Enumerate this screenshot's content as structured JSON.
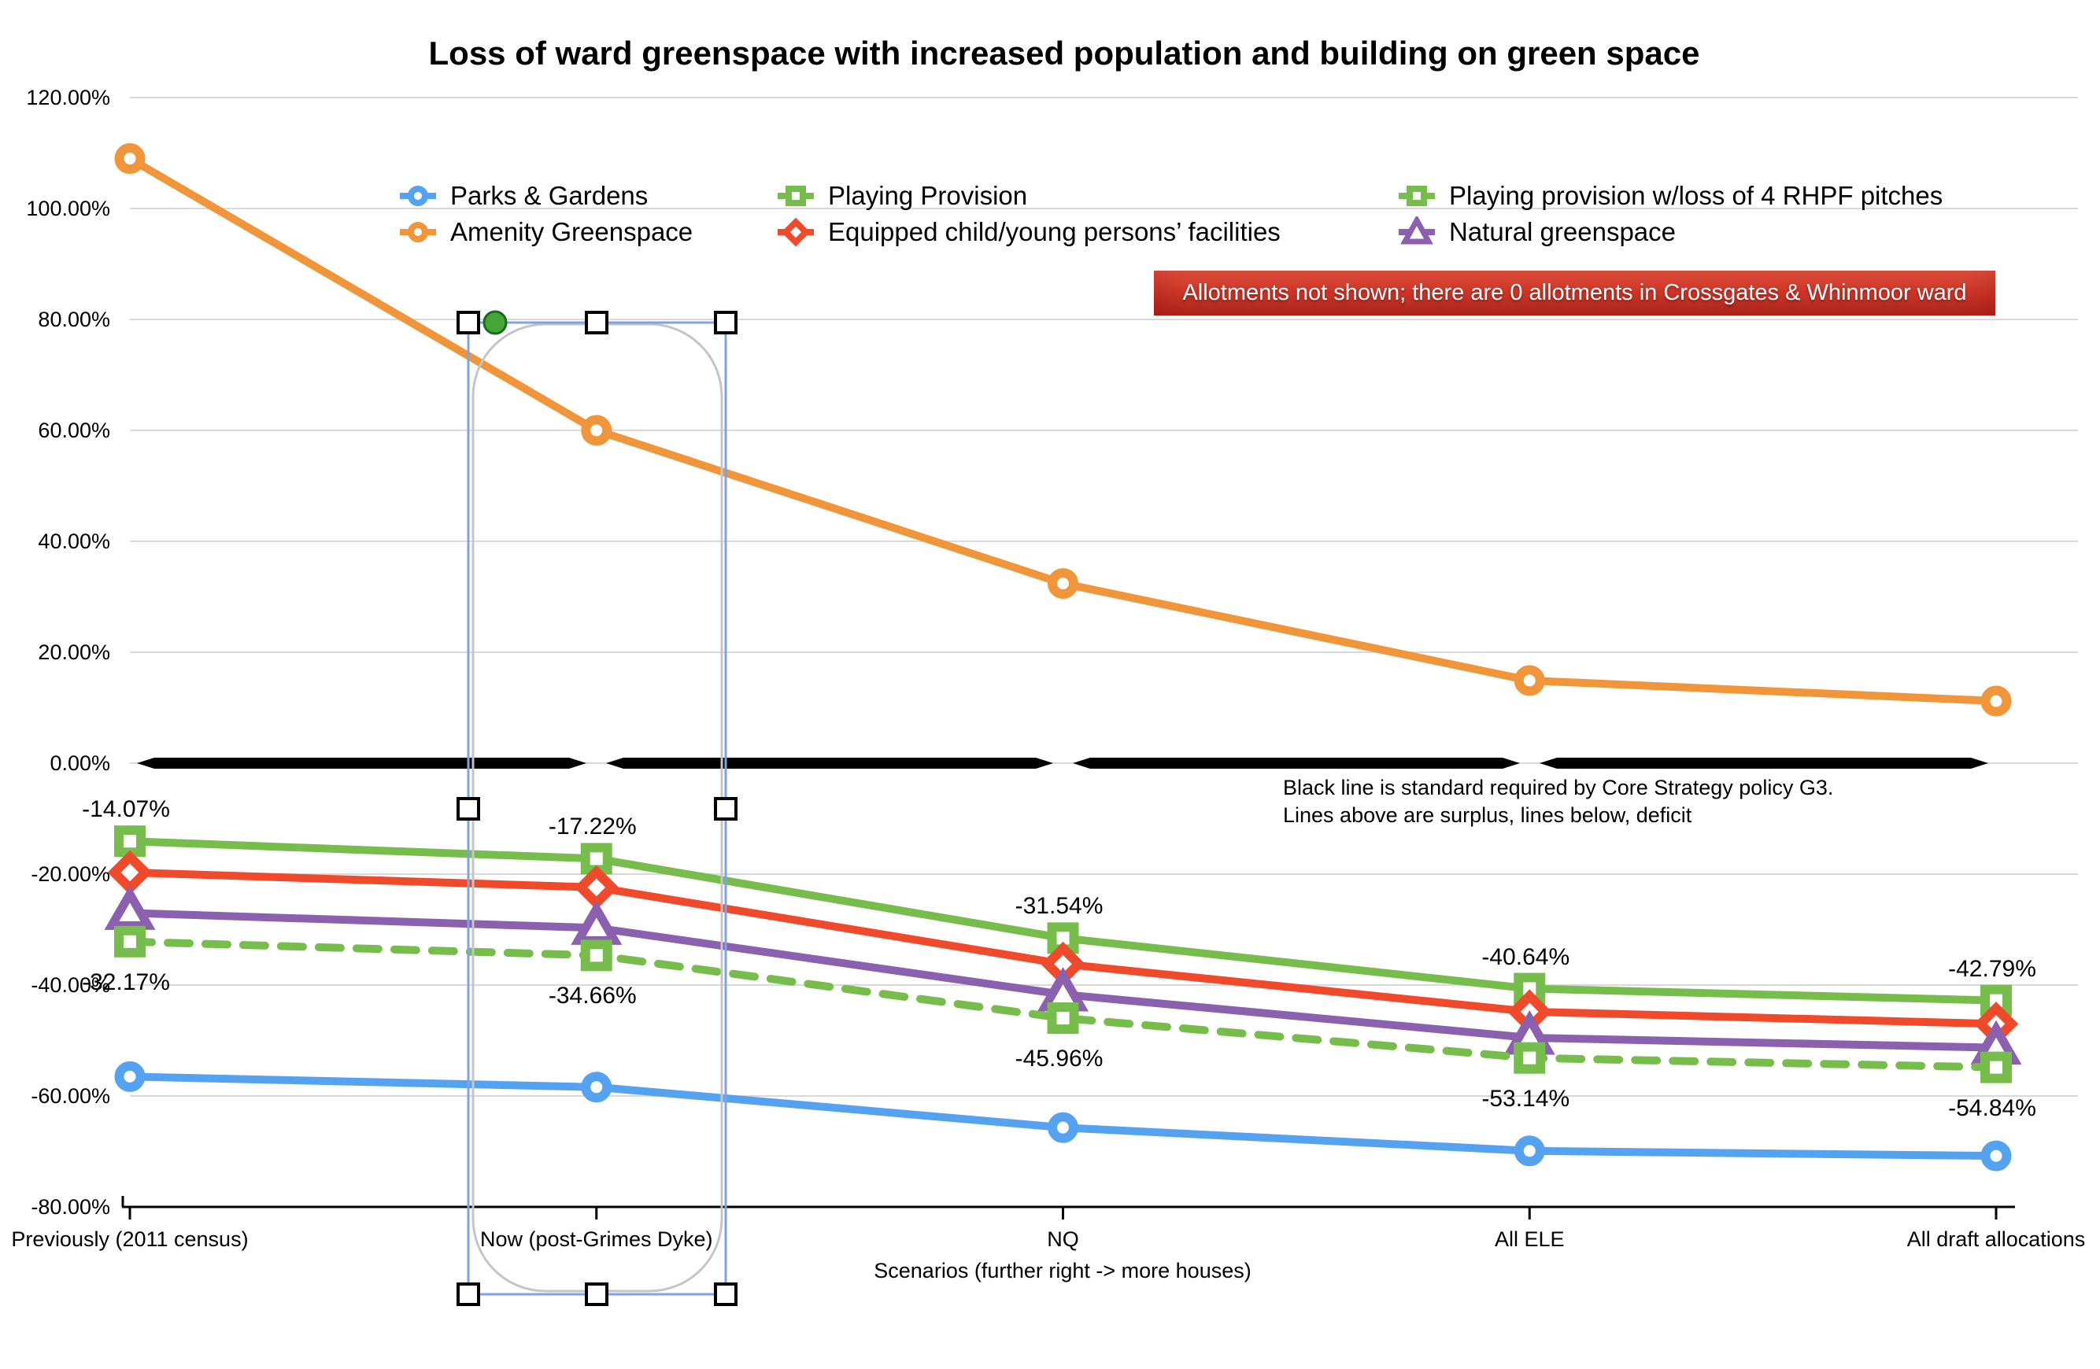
{
  "title": "Loss of ward greenspace with increased population and building on green space",
  "banner": {
    "text": "Allotments not shown; there are 0 allotments in Crossgates & Whinmoor ward",
    "bg_color": "#d63a2b",
    "text_color": "#ffffff"
  },
  "note": {
    "line1": "Black line is standard required by Core Strategy policy G3.",
    "line2": "Lines above are surplus, lines below, deficit"
  },
  "x_axis": {
    "title": "Scenarios (further right -> more houses)",
    "categories": [
      "Previously (2011 census)",
      "Now (post-Grimes Dyke)",
      "NQ",
      "All ELE",
      "All draft allocations"
    ]
  },
  "y_axis": {
    "tick_labels": [
      "120.00%",
      "100.00%",
      "80.00%",
      "60.00%",
      "40.00%",
      "20.00%",
      "0.00%",
      "-20.00%",
      "-40.00%",
      "-60.00%",
      "-80.00%"
    ],
    "tick_values": [
      120,
      100,
      80,
      60,
      40,
      20,
      0,
      -20,
      -40,
      -60,
      -80
    ]
  },
  "legend": [
    {
      "label": "Parks & Gardens",
      "marker": "circle",
      "color": "#55a3f0"
    },
    {
      "label": "Playing Provision",
      "marker": "square",
      "color": "#77bd4b"
    },
    {
      "label": "Playing provision w/loss of 4 RHPF pitches",
      "marker": "square",
      "color": "#77bd4b"
    },
    {
      "label": "Amenity Greenspace",
      "marker": "circle",
      "color": "#f0953a"
    },
    {
      "label": "Equipped child/young persons’ facilities",
      "marker": "diamond",
      "color": "#f04a2c"
    },
    {
      "label": "Natural greenspace",
      "marker": "triangle",
      "color": "#8b60ae"
    }
  ],
  "chart_data": {
    "type": "line",
    "categories": [
      "Previously (2011 census)",
      "Now (post-Grimes Dyke)",
      "NQ",
      "All ELE",
      "All draft allocations"
    ],
    "series": [
      {
        "name": "Parks & Gardens",
        "color": "#55a3f0",
        "marker": "circle",
        "dash": false,
        "values": [
          -56.5,
          -58.4,
          -65.7,
          -69.9,
          -70.8
        ]
      },
      {
        "name": "Playing Provision",
        "color": "#77bd4b",
        "marker": "square",
        "dash": false,
        "values": [
          -14.07,
          -17.22,
          -31.54,
          -40.64,
          -42.79
        ],
        "point_labels": [
          "-14.07%",
          "-17.22%",
          "-31.54%",
          "-40.64%",
          "-42.79%"
        ],
        "label_side": "above"
      },
      {
        "name": "Playing provision w/loss of 4 RHPF pitches",
        "color": "#77bd4b",
        "marker": "square",
        "dash": true,
        "values": [
          -32.17,
          -34.66,
          -45.96,
          -53.14,
          -54.84
        ],
        "point_labels": [
          "-32.17%",
          "-34.66%",
          "-45.96%",
          "-53.14%",
          "-54.84%"
        ],
        "label_side": "below"
      },
      {
        "name": "Amenity Greenspace",
        "color": "#f0953a",
        "marker": "circle",
        "dash": false,
        "values": [
          109,
          60,
          32.4,
          14.9,
          11.2
        ]
      },
      {
        "name": "Equipped child/young persons’ facilities",
        "color": "#f04a2c",
        "marker": "diamond",
        "dash": false,
        "values": [
          -19.7,
          -22.4,
          -36.2,
          -44.8,
          -47.0
        ]
      },
      {
        "name": "Natural greenspace",
        "color": "#8b60ae",
        "marker": "triangle",
        "dash": false,
        "values": [
          -27.0,
          -29.7,
          -41.7,
          -49.5,
          -51.3
        ]
      }
    ],
    "standard_line": {
      "value": 0,
      "color": "#000000",
      "meaning": "standard required by Core Strategy policy G3"
    },
    "ylim": [
      -80,
      120
    ],
    "grid": true,
    "legend_position": "top"
  }
}
